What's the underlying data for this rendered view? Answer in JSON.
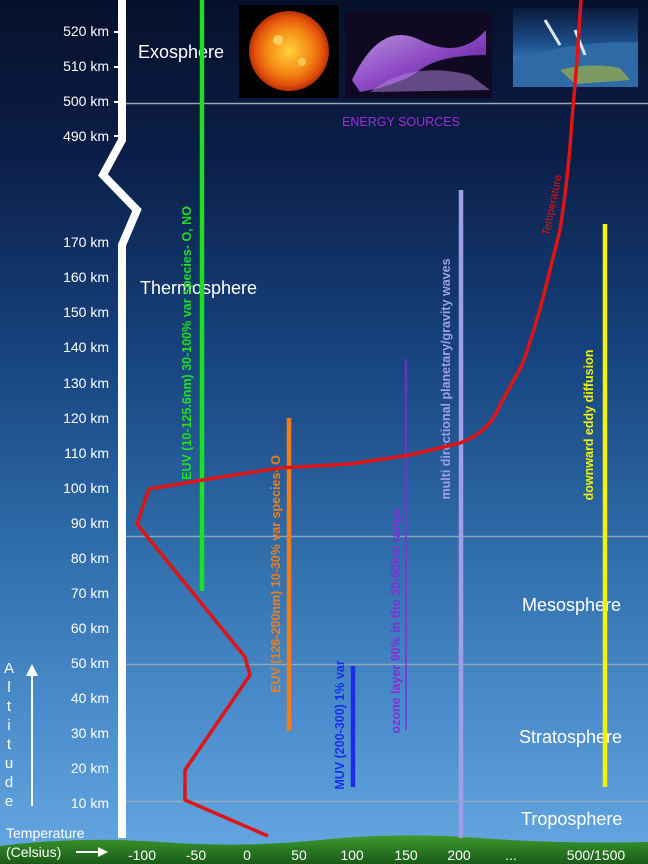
{
  "altitude_ticks": [
    "520 km",
    "510 km",
    "500 km",
    "490 km",
    "170 km",
    "160 km",
    "150 km",
    "140 km",
    "130 km",
    "120 km",
    "110 km",
    "100 km",
    "90 km",
    "80 km",
    "70 km",
    "60 km",
    "50 km",
    "40 km",
    "30 km",
    "20 km",
    "10 km"
  ],
  "temperature_ticks": [
    "-100",
    "-50",
    "0",
    "50",
    "100",
    "150",
    "200",
    "...",
    "500/1500"
  ],
  "layers": {
    "exosphere": "Exosphere",
    "thermosphere": "Thermosphere",
    "mesosphere": "Mesosphere",
    "stratosphere": "Stratosphere",
    "troposphere": "Troposphere"
  },
  "energy_sources_label": "ENERGY SOURCES",
  "temperature_curve_label": "Temperature",
  "altitude_axis_letters": [
    "A",
    "l",
    "t",
    "i",
    "t",
    "u",
    "d",
    "e"
  ],
  "temperature_axis_label": "Temperature",
  "temperature_axis_unit": "(Celsius)",
  "bar_labels": {
    "euv_short": "EUV (10-125.6nm) 30-100% var   species- O, NO",
    "euv_long": "EUV (126-200nm) 10-30% var  species- O",
    "muv": "MUV (200-300) 1% var",
    "ozone": "ozone layer 90% in the 30-50km range",
    "gravity_waves": "multi directional planetary/gravity waves",
    "eddy_diffusion": "downward eddy diffusion"
  },
  "colors": {
    "euv_short": "#22dd22",
    "euv_long": "#f07d1a",
    "muv": "#1a2ee8",
    "ozone": "#8a2ad8",
    "gravity_waves": "#9f9fe8",
    "eddy_diffusion": "#f2f20a",
    "temperature": "#dd1515",
    "energy_sources": "#9b30d8"
  },
  "images": [
    "sun-image",
    "aurora-image",
    "earth-limb-image"
  ]
}
